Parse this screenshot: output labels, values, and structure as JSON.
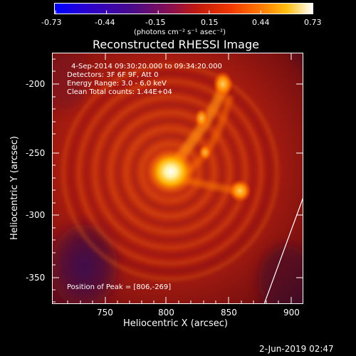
{
  "colorbar": {
    "tick_labels": [
      "-0.73",
      "-0.44",
      "-0.15",
      "0.15",
      "0.44",
      "0.73"
    ],
    "units": "(photons cm⁻² s⁻¹ asec⁻²)",
    "colors": [
      "#0000ff",
      "#3a00c8",
      "#4a0a8a",
      "#7a1060",
      "#b01d1d",
      "#e03000",
      "#ff6a00",
      "#ffb800",
      "#ffffff"
    ]
  },
  "plot": {
    "title": "Reconstructed RHESSI Image",
    "xlabel": "Heliocentric X (arcsec)",
    "ylabel": "Heliocentric Y (arcsec)",
    "x_ticks": [
      "750",
      "800",
      "850",
      "900"
    ],
    "y_ticks": [
      "-200",
      "-250",
      "-300",
      "-350"
    ],
    "info_lines": [
      "4-Sep-2014 09:30:20.000 to 09:34:20.000",
      "Detectors: 3F 6F 9F, Att 0",
      "Energy Range: 3.0 - 6.0 keV",
      "Clean     Total counts: 1.44E+04"
    ],
    "peak_text": "Position of Peak = [806,-269]"
  },
  "footer": {
    "timestamp": "2-Jun-2019 02:47"
  }
}
